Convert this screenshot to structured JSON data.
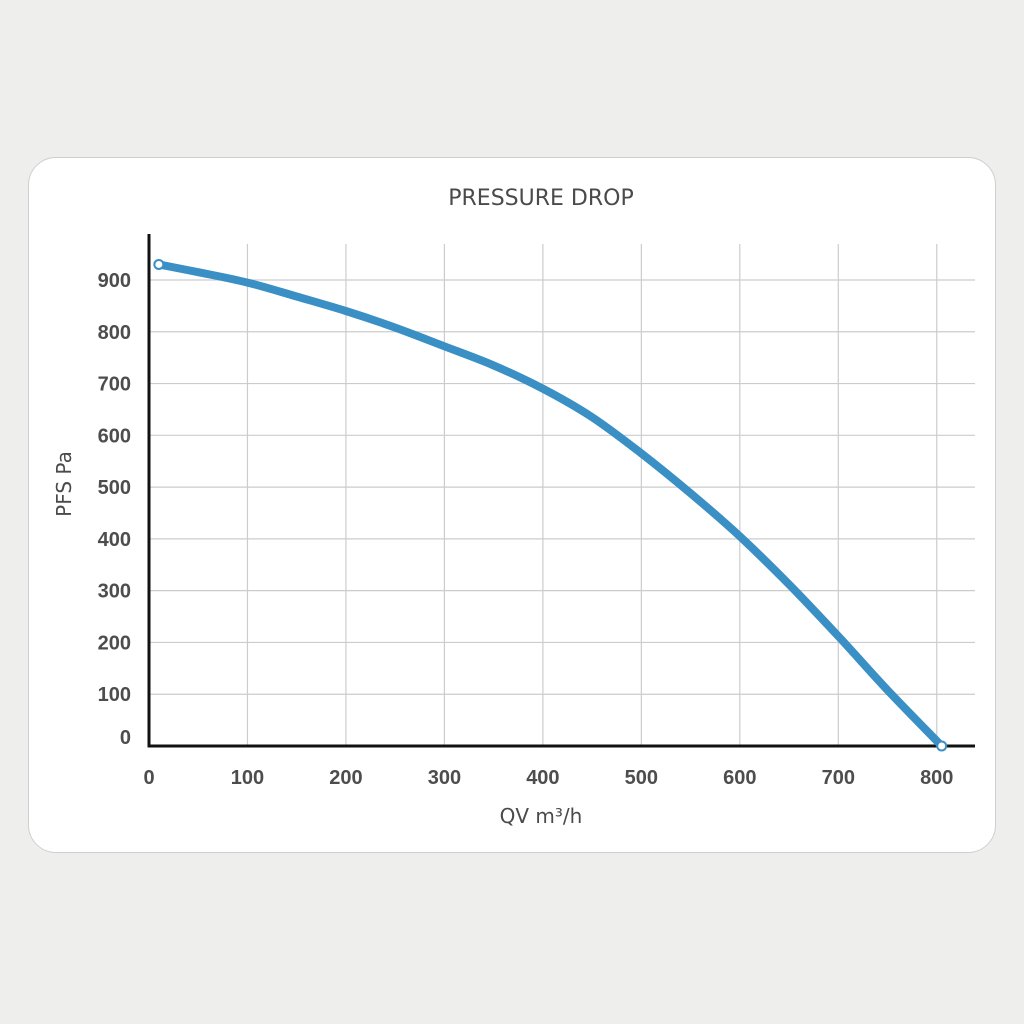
{
  "chart_data": {
    "type": "line",
    "title": "PRESSURE DROP",
    "xlabel": "QV m³/h",
    "ylabel": "PFS Pa",
    "xlim": [
      0,
      850
    ],
    "ylim": [
      0,
      970
    ],
    "x_ticks": [
      "0",
      "100",
      "200",
      "300",
      "400",
      "500",
      "600",
      "700",
      "800"
    ],
    "y_ticks": [
      "0",
      "100",
      "200",
      "300",
      "400",
      "500",
      "600",
      "700",
      "800",
      "900"
    ],
    "grid": true,
    "series": [
      {
        "x": [
          10,
          50,
          100,
          150,
          200,
          250,
          300,
          350,
          400,
          450,
          500,
          550,
          600,
          650,
          700,
          750,
          805
        ],
        "y": [
          930,
          915,
          895,
          868,
          840,
          808,
          772,
          735,
          690,
          635,
          565,
          488,
          405,
          312,
          212,
          108,
          0
        ],
        "color": "#3a8fc4"
      }
    ]
  }
}
